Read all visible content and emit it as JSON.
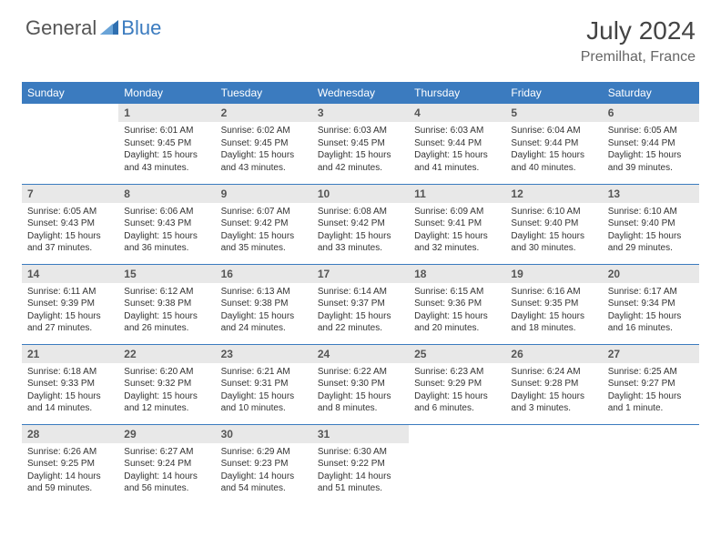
{
  "brand": {
    "general": "General",
    "blue": "Blue"
  },
  "title": "July 2024",
  "location": "Premilhat, France",
  "colors": {
    "header_bg": "#3b7bbf",
    "header_text": "#ffffff",
    "daynum_bg": "#e8e8e8",
    "row_border": "#3b7bbf",
    "body_text": "#333333",
    "page_bg": "#ffffff"
  },
  "typography": {
    "month_title_fontsize": 28,
    "location_fontsize": 16,
    "weekday_fontsize": 12,
    "daynum_fontsize": 12,
    "cell_fontsize": 10
  },
  "columns": [
    "Sunday",
    "Monday",
    "Tuesday",
    "Wednesday",
    "Thursday",
    "Friday",
    "Saturday"
  ],
  "weeks": [
    [
      {
        "n": "",
        "sr": "",
        "ss": "",
        "dl": ""
      },
      {
        "n": "1",
        "sr": "Sunrise: 6:01 AM",
        "ss": "Sunset: 9:45 PM",
        "dl": "Daylight: 15 hours and 43 minutes."
      },
      {
        "n": "2",
        "sr": "Sunrise: 6:02 AM",
        "ss": "Sunset: 9:45 PM",
        "dl": "Daylight: 15 hours and 43 minutes."
      },
      {
        "n": "3",
        "sr": "Sunrise: 6:03 AM",
        "ss": "Sunset: 9:45 PM",
        "dl": "Daylight: 15 hours and 42 minutes."
      },
      {
        "n": "4",
        "sr": "Sunrise: 6:03 AM",
        "ss": "Sunset: 9:44 PM",
        "dl": "Daylight: 15 hours and 41 minutes."
      },
      {
        "n": "5",
        "sr": "Sunrise: 6:04 AM",
        "ss": "Sunset: 9:44 PM",
        "dl": "Daylight: 15 hours and 40 minutes."
      },
      {
        "n": "6",
        "sr": "Sunrise: 6:05 AM",
        "ss": "Sunset: 9:44 PM",
        "dl": "Daylight: 15 hours and 39 minutes."
      }
    ],
    [
      {
        "n": "7",
        "sr": "Sunrise: 6:05 AM",
        "ss": "Sunset: 9:43 PM",
        "dl": "Daylight: 15 hours and 37 minutes."
      },
      {
        "n": "8",
        "sr": "Sunrise: 6:06 AM",
        "ss": "Sunset: 9:43 PM",
        "dl": "Daylight: 15 hours and 36 minutes."
      },
      {
        "n": "9",
        "sr": "Sunrise: 6:07 AM",
        "ss": "Sunset: 9:42 PM",
        "dl": "Daylight: 15 hours and 35 minutes."
      },
      {
        "n": "10",
        "sr": "Sunrise: 6:08 AM",
        "ss": "Sunset: 9:42 PM",
        "dl": "Daylight: 15 hours and 33 minutes."
      },
      {
        "n": "11",
        "sr": "Sunrise: 6:09 AM",
        "ss": "Sunset: 9:41 PM",
        "dl": "Daylight: 15 hours and 32 minutes."
      },
      {
        "n": "12",
        "sr": "Sunrise: 6:10 AM",
        "ss": "Sunset: 9:40 PM",
        "dl": "Daylight: 15 hours and 30 minutes."
      },
      {
        "n": "13",
        "sr": "Sunrise: 6:10 AM",
        "ss": "Sunset: 9:40 PM",
        "dl": "Daylight: 15 hours and 29 minutes."
      }
    ],
    [
      {
        "n": "14",
        "sr": "Sunrise: 6:11 AM",
        "ss": "Sunset: 9:39 PM",
        "dl": "Daylight: 15 hours and 27 minutes."
      },
      {
        "n": "15",
        "sr": "Sunrise: 6:12 AM",
        "ss": "Sunset: 9:38 PM",
        "dl": "Daylight: 15 hours and 26 minutes."
      },
      {
        "n": "16",
        "sr": "Sunrise: 6:13 AM",
        "ss": "Sunset: 9:38 PM",
        "dl": "Daylight: 15 hours and 24 minutes."
      },
      {
        "n": "17",
        "sr": "Sunrise: 6:14 AM",
        "ss": "Sunset: 9:37 PM",
        "dl": "Daylight: 15 hours and 22 minutes."
      },
      {
        "n": "18",
        "sr": "Sunrise: 6:15 AM",
        "ss": "Sunset: 9:36 PM",
        "dl": "Daylight: 15 hours and 20 minutes."
      },
      {
        "n": "19",
        "sr": "Sunrise: 6:16 AM",
        "ss": "Sunset: 9:35 PM",
        "dl": "Daylight: 15 hours and 18 minutes."
      },
      {
        "n": "20",
        "sr": "Sunrise: 6:17 AM",
        "ss": "Sunset: 9:34 PM",
        "dl": "Daylight: 15 hours and 16 minutes."
      }
    ],
    [
      {
        "n": "21",
        "sr": "Sunrise: 6:18 AM",
        "ss": "Sunset: 9:33 PM",
        "dl": "Daylight: 15 hours and 14 minutes."
      },
      {
        "n": "22",
        "sr": "Sunrise: 6:20 AM",
        "ss": "Sunset: 9:32 PM",
        "dl": "Daylight: 15 hours and 12 minutes."
      },
      {
        "n": "23",
        "sr": "Sunrise: 6:21 AM",
        "ss": "Sunset: 9:31 PM",
        "dl": "Daylight: 15 hours and 10 minutes."
      },
      {
        "n": "24",
        "sr": "Sunrise: 6:22 AM",
        "ss": "Sunset: 9:30 PM",
        "dl": "Daylight: 15 hours and 8 minutes."
      },
      {
        "n": "25",
        "sr": "Sunrise: 6:23 AM",
        "ss": "Sunset: 9:29 PM",
        "dl": "Daylight: 15 hours and 6 minutes."
      },
      {
        "n": "26",
        "sr": "Sunrise: 6:24 AM",
        "ss": "Sunset: 9:28 PM",
        "dl": "Daylight: 15 hours and 3 minutes."
      },
      {
        "n": "27",
        "sr": "Sunrise: 6:25 AM",
        "ss": "Sunset: 9:27 PM",
        "dl": "Daylight: 15 hours and 1 minute."
      }
    ],
    [
      {
        "n": "28",
        "sr": "Sunrise: 6:26 AM",
        "ss": "Sunset: 9:25 PM",
        "dl": "Daylight: 14 hours and 59 minutes."
      },
      {
        "n": "29",
        "sr": "Sunrise: 6:27 AM",
        "ss": "Sunset: 9:24 PM",
        "dl": "Daylight: 14 hours and 56 minutes."
      },
      {
        "n": "30",
        "sr": "Sunrise: 6:29 AM",
        "ss": "Sunset: 9:23 PM",
        "dl": "Daylight: 14 hours and 54 minutes."
      },
      {
        "n": "31",
        "sr": "Sunrise: 6:30 AM",
        "ss": "Sunset: 9:22 PM",
        "dl": "Daylight: 14 hours and 51 minutes."
      },
      {
        "n": "",
        "sr": "",
        "ss": "",
        "dl": ""
      },
      {
        "n": "",
        "sr": "",
        "ss": "",
        "dl": ""
      },
      {
        "n": "",
        "sr": "",
        "ss": "",
        "dl": ""
      }
    ]
  ]
}
